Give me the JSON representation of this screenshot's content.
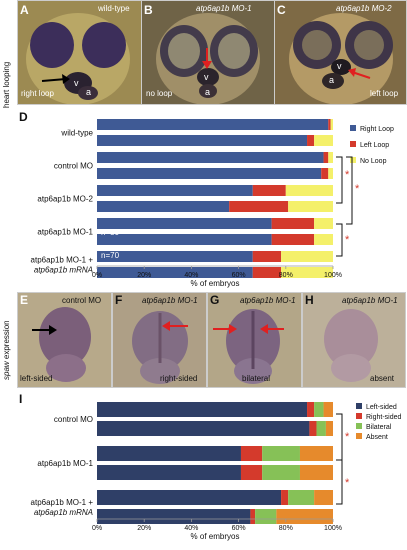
{
  "top_side_label": "heart looping",
  "bottom_side_label_italic": "spaw",
  "bottom_side_label_rest": " expression",
  "heart_panels": [
    {
      "letter": "A",
      "title": "wild-type",
      "title_italic": false,
      "caption": "right loop",
      "bg": "#9c8a52",
      "head": "#b9a766",
      "eye": "#3c2e5a"
    },
    {
      "letter": "B",
      "title": "atp6ap1b MO-1",
      "title_italic": true,
      "caption": "no loop",
      "bg": "#6f6347",
      "head": "#a08f68",
      "eye": "#433b4b"
    },
    {
      "letter": "C",
      "title": "atp6ap1b MO-2",
      "title_italic": true,
      "caption": "left loop",
      "bg": "#7e6a45",
      "head": "#b49a66",
      "eye": "#3f3548"
    }
  ],
  "heart_labels": {
    "v": "v",
    "a": "a"
  },
  "spaw_panels": [
    {
      "letter": "E",
      "title": "control MO",
      "title_italic": false,
      "caption": "left-sided",
      "bg": "#b7a98a"
    },
    {
      "letter": "F",
      "title": "atp6ap1b MO-1",
      "title_italic": true,
      "caption": "right-sided",
      "bg": "#ae9f86"
    },
    {
      "letter": "G",
      "title": "atp6ap1b MO-1",
      "title_italic": true,
      "caption": "bilateral",
      "bg": "#b3a688"
    },
    {
      "letter": "H",
      "title": "atp6ap1b MO-1",
      "title_italic": true,
      "caption": "absent",
      "bg": "#bcb09a"
    }
  ],
  "chart_D": {
    "letter": "D",
    "type": "bar",
    "xlabel": "% of embryos",
    "x_ticks": [
      "0%",
      "20%",
      "40%",
      "60%",
      "80%",
      "100%"
    ],
    "xlim": [
      0,
      100
    ],
    "legend": [
      "Right Loop",
      "Left Loop",
      "No Loop"
    ],
    "colors": {
      "Right Loop": "#3f5a95",
      "Left Loop": "#d43a2c",
      "No Loop": "#f4f06a"
    },
    "groups": [
      {
        "label": "wild-type",
        "label2": "",
        "label2_italic": false,
        "bars": [
          [
            98,
            1,
            1
          ],
          [
            89,
            3,
            8
          ]
        ]
      },
      {
        "label": "control MO",
        "label2": "",
        "label2_italic": false,
        "bars": [
          [
            96,
            2,
            2
          ],
          [
            95,
            3,
            2
          ]
        ]
      },
      {
        "label": "atp6ap1b MO-2",
        "label2": "",
        "label2_italic": false,
        "bars": [
          [
            66,
            14,
            20
          ],
          [
            56,
            25,
            19
          ]
        ]
      },
      {
        "label": "atp6ap1b MO-1",
        "label2": "",
        "label2_italic": false,
        "bars": [
          [
            74,
            18,
            8
          ],
          [
            74,
            18,
            8
          ]
        ]
      },
      {
        "label": "atp6ap1b MO-1 +",
        "label2": "atp6ap1b mRNA",
        "label2_italic": true,
        "bars": [
          [
            66,
            12,
            22
          ],
          [
            66,
            12,
            22
          ]
        ]
      }
    ],
    "annotations": [
      "n=50",
      "n=70"
    ],
    "significance": [
      "*",
      "*",
      "*"
    ]
  },
  "chart_I": {
    "letter": "I",
    "type": "bar",
    "xlabel": "% of embryos",
    "x_ticks": [
      "0%",
      "20%",
      "40%",
      "60%",
      "80%",
      "100%"
    ],
    "xlim": [
      0,
      100
    ],
    "legend": [
      "Left-sided",
      "Right-sided",
      "Bilateral",
      "Absent"
    ],
    "colors": {
      "Left-sided": "#2f3f67",
      "Right-sided": "#d43a2c",
      "Bilateral": "#86c157",
      "Absent": "#e68a2c"
    },
    "groups": [
      {
        "label": "control MO",
        "label2": "",
        "label2_italic": false,
        "bars": [
          [
            89,
            3,
            4,
            4
          ],
          [
            90,
            3,
            4,
            3
          ]
        ]
      },
      {
        "label": "atp6ap1b MO-1",
        "label2": "",
        "label2_italic": false,
        "bars": [
          [
            61,
            9,
            16,
            14
          ],
          [
            61,
            9,
            16,
            14
          ]
        ]
      },
      {
        "label": "atp6ap1b MO-1 +",
        "label2": "atp6ap1b mRNA",
        "label2_italic": true,
        "bars": [
          [
            78,
            3,
            11,
            8
          ],
          [
            65,
            2,
            9,
            24
          ]
        ]
      }
    ],
    "significance": [
      "*",
      "*"
    ]
  }
}
